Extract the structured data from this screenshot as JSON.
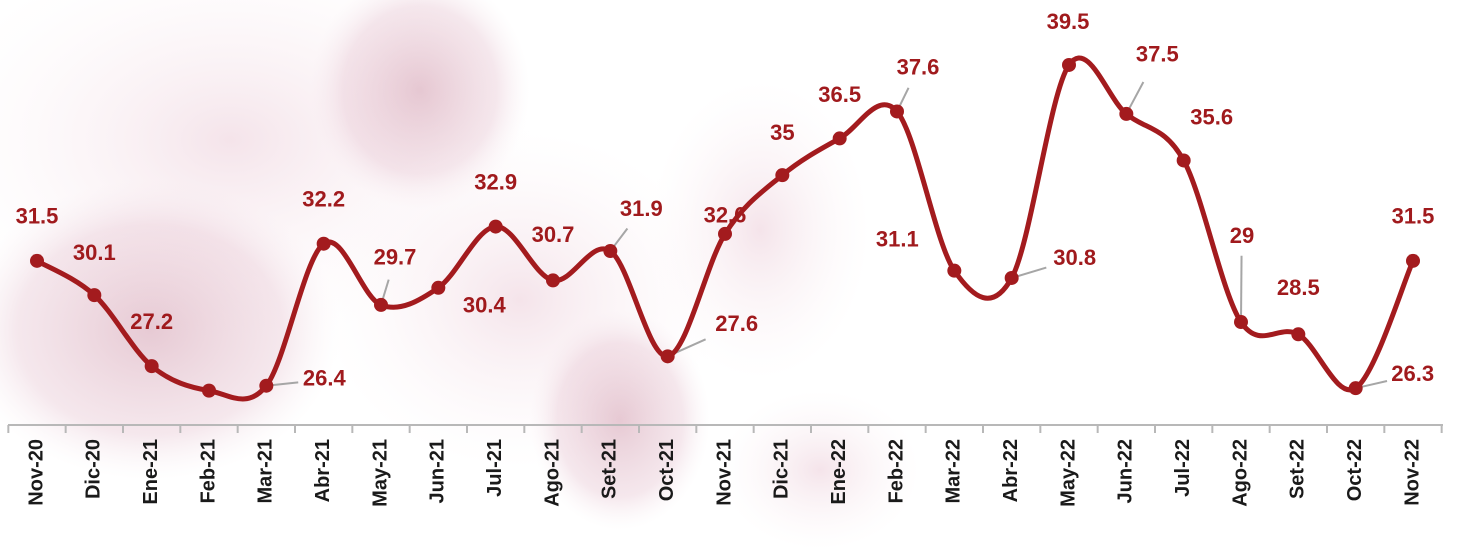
{
  "chart_data": {
    "type": "line",
    "categories": [
      "Nov-20",
      "Dic-20",
      "Ene-21",
      "Feb-21",
      "Mar-21",
      "Abr-21",
      "May-21",
      "Jun-21",
      "Jul-21",
      "Ago-21",
      "Set-21",
      "Oct-21",
      "Nov-21",
      "Dic-21",
      "Ene-22",
      "Feb-22",
      "Mar-22",
      "Abr-22",
      "May-22",
      "Jun-22",
      "Jul-22",
      "Ago-22",
      "Set-22",
      "Oct-22",
      "Nov-22"
    ],
    "values": [
      31.5,
      30.1,
      27.2,
      26.2,
      26.4,
      32.2,
      29.7,
      30.4,
      32.9,
      30.7,
      31.9,
      27.6,
      32.6,
      35,
      36.5,
      37.6,
      31.1,
      30.8,
      39.5,
      37.5,
      35.6,
      29,
      28.5,
      26.3,
      31.5
    ],
    "value_labels": [
      "31.5",
      "30.1",
      "27.2",
      null,
      "26.4",
      "32.2",
      "29.7",
      "30.4",
      "32.9",
      "30.7",
      "31.9",
      "27.6",
      "32.6",
      "35",
      "36.5",
      "37.6",
      "31.1",
      "30.8",
      "39.5",
      "37.5",
      "35.6",
      "29",
      "28.5",
      "26.3",
      "31.5"
    ],
    "color": "#a31b1e",
    "ylim": [
      25,
      42
    ]
  }
}
